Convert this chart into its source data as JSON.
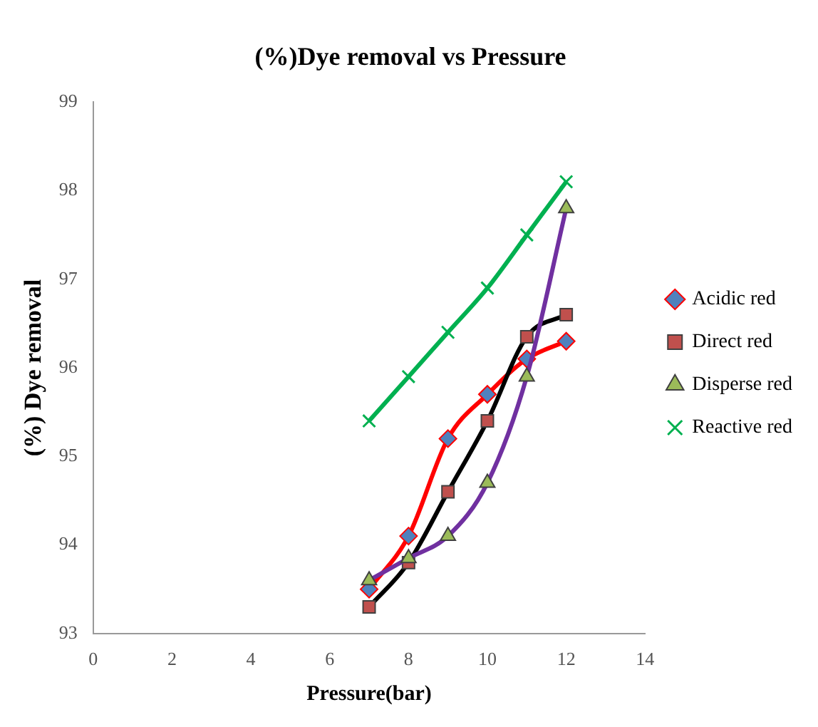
{
  "chart_data": {
    "type": "line",
    "title": "(%)Dye removal vs Pressure",
    "xlabel": "Pressure(bar)",
    "ylabel": "(%) Dye removal",
    "x": [
      7,
      8,
      9,
      10,
      11,
      12
    ],
    "xlim": [
      0,
      14
    ],
    "xticks": [
      0,
      2,
      4,
      6,
      8,
      10,
      12,
      14
    ],
    "ylim": [
      93,
      99
    ],
    "yticks": [
      93,
      94,
      95,
      96,
      97,
      98,
      99
    ],
    "grid": false,
    "legend": "right",
    "line_style": "solid",
    "series": [
      {
        "name": "Acidic red",
        "color": "#ff0000",
        "marker": "diamond",
        "values": [
          93.5,
          94.1,
          95.2,
          95.7,
          96.1,
          96.3
        ]
      },
      {
        "name": "Direct red",
        "color": "#000000",
        "marker": "square",
        "values": [
          93.3,
          93.8,
          94.6,
          95.4,
          96.35,
          96.6
        ]
      },
      {
        "name": "Disperse red",
        "color": "#7030a0",
        "marker": "triangle",
        "values": [
          93.6,
          93.85,
          94.1,
          94.7,
          95.9,
          97.8
        ]
      },
      {
        "name": "Reactive red",
        "color": "#00b050",
        "marker": "cross",
        "values": [
          95.4,
          95.9,
          96.4,
          96.9,
          97.5,
          98.1
        ]
      }
    ]
  }
}
